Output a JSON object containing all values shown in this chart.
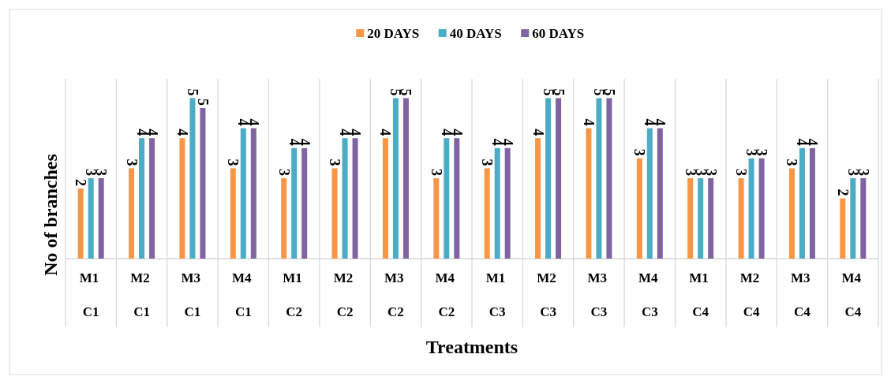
{
  "chart_data": {
    "type": "bar",
    "xlabel": "Treatments",
    "ylabel": "No of branches",
    "categories": [
      "M1 C1",
      "M2 C1",
      "M3 C1",
      "M4 C1",
      "M1 C2",
      "M2 C2",
      "M3 C2",
      "M4 C2",
      "M1 C3",
      "M2 C3",
      "M3 C3",
      "M4 C3",
      "M1 C4",
      "M2 C4",
      "M3 C4",
      "M4 C4"
    ],
    "series": [
      {
        "name": "20 DAYS",
        "color": "#f79646",
        "values": [
          2.33,
          3,
          4,
          3,
          2.67,
          3,
          4,
          2.67,
          3,
          4,
          4.33,
          3.33,
          2.67,
          2.67,
          3,
          2
        ],
        "value_labels": [
          "2",
          "3",
          "4",
          "3",
          "3",
          "3",
          "4",
          "3",
          "3",
          "4",
          "4",
          "3",
          "3",
          "3",
          "3",
          "2"
        ]
      },
      {
        "name": "40 DAYS",
        "color": "#4bacc6",
        "values": [
          2.67,
          4,
          5.33,
          4.33,
          3.67,
          4,
          5.33,
          4,
          3.67,
          5.33,
          5.33,
          4.33,
          2.67,
          3.33,
          3.67,
          2.67
        ],
        "value_labels": [
          "3",
          "4",
          "5",
          "4",
          "4",
          "4",
          "5",
          "4",
          "4",
          "5",
          "5",
          "4",
          "3",
          "3",
          "4",
          "3"
        ]
      },
      {
        "name": "60 DAYS",
        "color": "#8064a2",
        "values": [
          2.67,
          4,
          5,
          4.33,
          3.67,
          4,
          5.33,
          4,
          3.67,
          5.33,
          5.33,
          4.33,
          2.67,
          3.33,
          3.67,
          2.67
        ],
        "value_labels": [
          "3",
          "4",
          "5",
          "4",
          "4",
          "4",
          "5",
          "4",
          "4",
          "5",
          "5",
          "4",
          "3",
          "3",
          "4",
          "3"
        ]
      }
    ],
    "grid": "x",
    "legend": "top"
  }
}
